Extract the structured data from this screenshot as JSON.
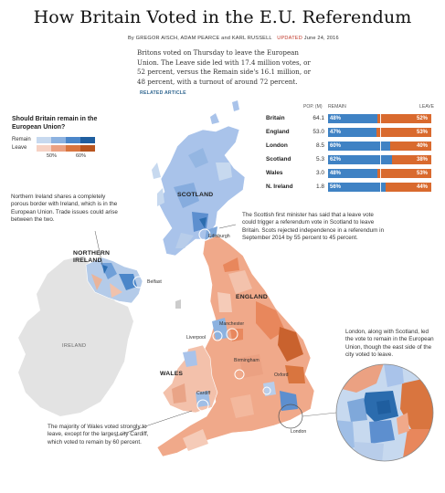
{
  "headline": "How Britain Voted in the E.U. Referendum",
  "byline": {
    "authors": "By GREGOR AISCH, ADAM PEARCE and KARL RUSSELL",
    "updated_label": "UPDATED",
    "date": "June 24, 2016"
  },
  "intro": {
    "text": "Britons voted on Thursday to leave the European Union. The Leave side led with 17.4 million votes, or 52 percent, versus the Remain side's 16.1 million, or 48 percent, with a turnout of around 72 percent.",
    "related": "RELATED ARTICLE"
  },
  "legend": {
    "title": "Should Britain remain in the European Union?",
    "remain": "Remain",
    "leave": "Leave",
    "tick_50": "50%",
    "tick_60": "60%",
    "colors": {
      "remain_light": "#c7d9ef",
      "remain_mid": "#7fa8da",
      "remain_dark": "#1f5e9f",
      "leave_light": "#f6d2c4",
      "leave_mid": "#e58a63",
      "leave_dark": "#b8551f"
    }
  },
  "table": {
    "headers": {
      "pop": "POP. (M)",
      "remain": "REMAIN",
      "leave": "LEAVE"
    },
    "rows": [
      {
        "name": "Britain",
        "pop": "64.1",
        "remain": 48,
        "leave": 52,
        "remain_label": "48%",
        "leave_label": "52%"
      },
      {
        "name": "England",
        "pop": "53.0",
        "remain": 47,
        "leave": 53,
        "remain_label": "47%",
        "leave_label": "53%"
      },
      {
        "name": "London",
        "pop": "8.5",
        "remain": 60,
        "leave": 40,
        "remain_label": "60%",
        "leave_label": "40%"
      },
      {
        "name": "Scotland",
        "pop": "5.3",
        "remain": 62,
        "leave": 38,
        "remain_label": "62%",
        "leave_label": "38%"
      },
      {
        "name": "Wales",
        "pop": "3.0",
        "remain": 48,
        "leave": 53,
        "remain_label": "48%",
        "leave_label": "53%"
      },
      {
        "name": "N. Ireland",
        "pop": "1.8",
        "remain": 56,
        "leave": 44,
        "remain_label": "56%",
        "leave_label": "44%"
      }
    ]
  },
  "regions": {
    "scotland": "SCOTLAND",
    "northern_ireland": "NORTHERN IRELAND",
    "ireland": "IRELAND",
    "england": "ENGLAND",
    "wales": "WALES"
  },
  "cities": {
    "edinburgh": "Edinburgh",
    "belfast": "Belfast",
    "manchester": "Manchester",
    "liverpool": "Liverpool",
    "birmingham": "Birmingham",
    "oxford": "Oxford",
    "cardiff": "Cardiff",
    "london": "London"
  },
  "annotations": {
    "northern_ireland": "Northern Ireland shares a completely porous border with Ireland, which is in the European Union. Trade issues could arise between the two.",
    "scotland": "The Scottish first minister has said that a leave vote could trigger a referendum vote in Scotland to leave Britain. Scots rejected independence in a referendum in September 2014 by 55 percent to 45 percent.",
    "london": "London, along with Scotland, led the vote to remain in the European Union, though the east side of the city voted to leave.",
    "wales": "The majority of Wales voted strongly to leave, except for the largest city Cardiff, which voted to remain by 60 percent."
  },
  "map_colors": {
    "ireland": "#e3e3e3",
    "scotland_base": "#a9c3ea",
    "england_base": "#f0a98a",
    "wales_base": "#f3c1ab",
    "ni_base": "#b4cbe9"
  }
}
